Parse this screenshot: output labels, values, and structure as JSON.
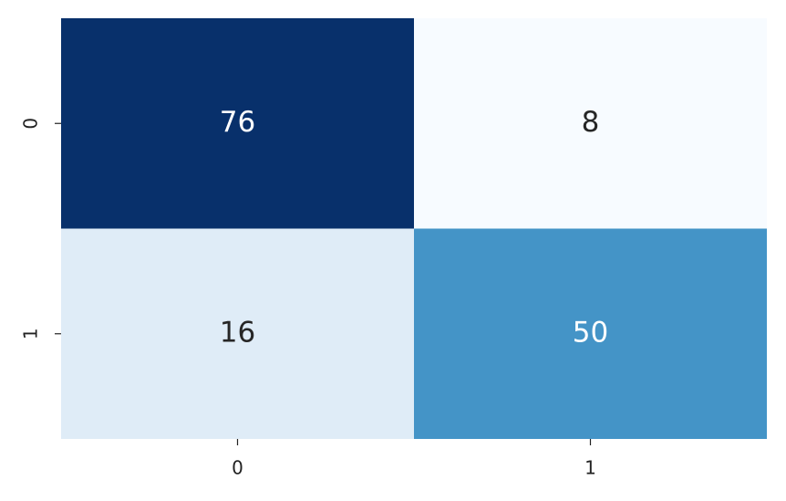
{
  "chart_data": {
    "type": "heatmap",
    "x_categories": [
      "0",
      "1"
    ],
    "y_categories": [
      "0",
      "1"
    ],
    "values": [
      [
        76,
        8
      ],
      [
        16,
        50
      ]
    ],
    "colormap": "Blues",
    "colorbar": false
  }
}
